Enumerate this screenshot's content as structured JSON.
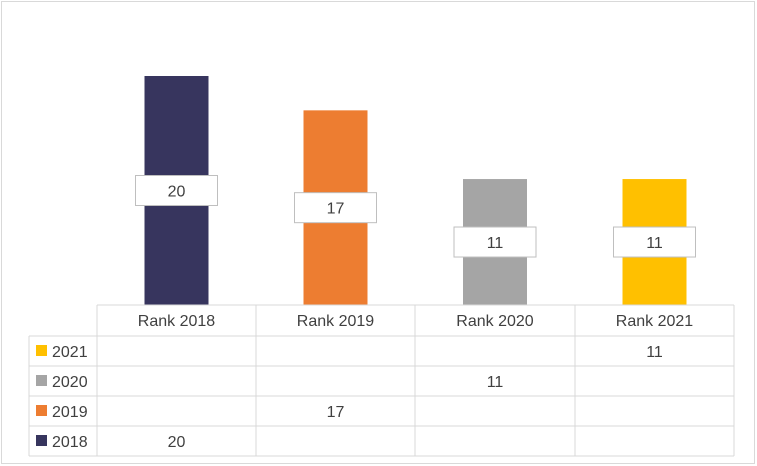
{
  "chart_data": {
    "type": "bar",
    "categories": [
      "Rank 2018",
      "Rank 2019",
      "Rank 2020",
      "Rank 2021"
    ],
    "series": [
      {
        "name": "2018",
        "color": "#37355e",
        "values": [
          20,
          null,
          null,
          null
        ]
      },
      {
        "name": "2019",
        "color": "#ed7d31",
        "values": [
          null,
          17,
          null,
          null
        ]
      },
      {
        "name": "2020",
        "color": "#a5a5a5",
        "values": [
          null,
          null,
          11,
          null
        ]
      },
      {
        "name": "2021",
        "color": "#ffc000",
        "values": [
          null,
          null,
          null,
          11
        ]
      }
    ],
    "title": "",
    "xlabel": "",
    "ylabel": "",
    "ylim": [
      0,
      21
    ],
    "data_table": true,
    "data_table_row_order": [
      "2021",
      "2020",
      "2019",
      "2018"
    ],
    "legend": "data-table-keys",
    "grid": false
  }
}
